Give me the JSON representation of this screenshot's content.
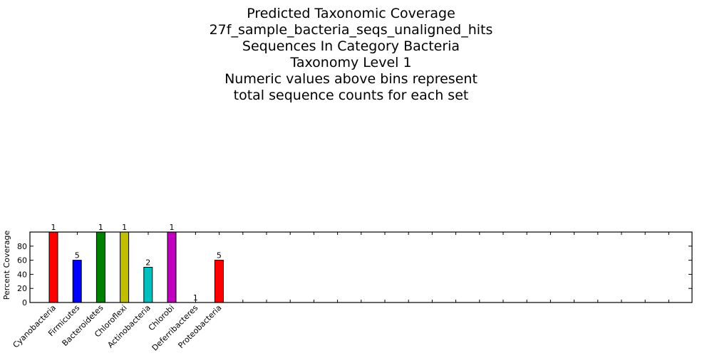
{
  "chart_data": {
    "type": "bar",
    "title_lines": [
      "Predicted Taxonomic Coverage",
      "27f_sample_bacteria_seqs_unaligned_hits",
      "Sequences In Category Bacteria",
      "Taxonomy Level 1",
      "Numeric values above bins represent",
      "total sequence counts for each set"
    ],
    "ylabel": "Percent Coverage",
    "xlabel": "",
    "ylim": [
      0,
      100
    ],
    "yticks": [
      "0",
      "20",
      "40",
      "60",
      "80"
    ],
    "grid": false,
    "categories": [
      "Cyanobacteria",
      "Firmicutes",
      "Bacteroidetes",
      "Chloroflexi",
      "Actinobacteria",
      "Chlorobi",
      "Deferribacteres",
      "Proteobacteria"
    ],
    "values": [
      100,
      60,
      100,
      100,
      50,
      100,
      0,
      60
    ],
    "counts": [
      "1",
      "5",
      "1",
      "1",
      "2",
      "1",
      "1",
      "5"
    ],
    "colors": [
      "#ff0000",
      "#0000ff",
      "#008000",
      "#bfbf00",
      "#00bfbf",
      "#bf00bf",
      "#000000",
      "#ff0000"
    ]
  }
}
